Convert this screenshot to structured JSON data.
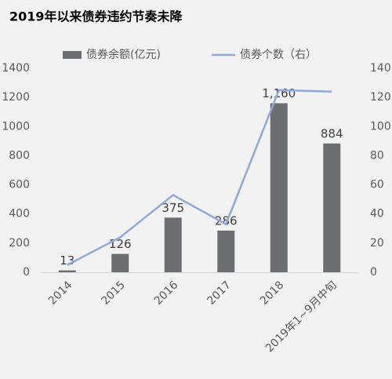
{
  "chart_data": {
    "type": "bar",
    "title": "2019年以来债券违约节奏未降",
    "categories": [
      "2014",
      "2015",
      "2016",
      "2017",
      "2018",
      "2019年1~9月中旬"
    ],
    "series": [
      {
        "name": "债券余额(亿元)",
        "type": "bar",
        "color": "#6d6e71",
        "values": [
          13,
          126,
          375,
          286,
          1160,
          884
        ],
        "value_labels": [
          "13",
          "126",
          "375",
          "286",
          "1,160",
          "884"
        ]
      },
      {
        "name": "债券个数（右）",
        "type": "line",
        "color": "#8eaadb",
        "axis": "y2",
        "values": [
          5,
          24,
          53,
          33,
          125,
          124
        ]
      }
    ],
    "ylim": [
      0,
      1400
    ],
    "yticks": [
      0,
      200,
      400,
      600,
      800,
      1000,
      1200,
      1400
    ],
    "y2lim": [
      0,
      140
    ],
    "y2ticks": [
      0,
      20,
      40,
      60,
      80,
      100,
      120,
      140
    ],
    "grid": false
  }
}
